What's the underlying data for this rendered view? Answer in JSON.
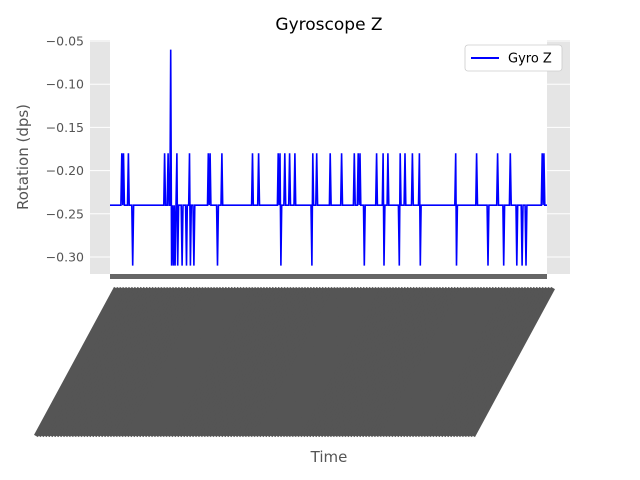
{
  "chart_data": {
    "type": "line",
    "title": "Gyroscope Z",
    "xlabel": "Time",
    "ylabel": "Rotation (dps)",
    "ylim": [
      -0.32,
      -0.045
    ],
    "yticks": [
      "-0.05",
      "-0.10",
      "-0.15",
      "-0.20",
      "-0.25",
      "-0.30"
    ],
    "ytick_values": [
      -0.05,
      -0.1,
      -0.15,
      -0.2,
      -0.25,
      -0.3
    ],
    "grid": true,
    "legend": {
      "placement": "top-right"
    },
    "x_ticks_illegible": true,
    "series": [
      {
        "name": "Gyro Z",
        "color": "#0000ff",
        "points": [
          [
            0.0,
            -0.24
          ],
          [
            2.5,
            -0.24
          ],
          [
            2.7,
            -0.18
          ],
          [
            2.9,
            -0.24
          ],
          [
            3.1,
            -0.18
          ],
          [
            3.3,
            -0.24
          ],
          [
            4.0,
            -0.24
          ],
          [
            4.2,
            -0.18
          ],
          [
            4.4,
            -0.24
          ],
          [
            5.0,
            -0.24
          ],
          [
            5.2,
            -0.31
          ],
          [
            5.4,
            -0.24
          ],
          [
            12.3,
            -0.24
          ],
          [
            12.5,
            -0.18
          ],
          [
            12.7,
            -0.24
          ],
          [
            13.1,
            -0.24
          ],
          [
            13.3,
            -0.18
          ],
          [
            13.5,
            -0.24
          ],
          [
            13.7,
            -0.24
          ],
          [
            13.9,
            -0.06
          ],
          [
            14.1,
            -0.31
          ],
          [
            14.3,
            -0.24
          ],
          [
            14.5,
            -0.31
          ],
          [
            14.7,
            -0.24
          ],
          [
            14.9,
            -0.31
          ],
          [
            15.1,
            -0.24
          ],
          [
            15.3,
            -0.18
          ],
          [
            15.5,
            -0.31
          ],
          [
            15.7,
            -0.24
          ],
          [
            16.3,
            -0.24
          ],
          [
            16.5,
            -0.31
          ],
          [
            16.7,
            -0.24
          ],
          [
            17.3,
            -0.24
          ],
          [
            17.5,
            -0.31
          ],
          [
            17.7,
            -0.24
          ],
          [
            18.0,
            -0.24
          ],
          [
            18.2,
            -0.18
          ],
          [
            18.4,
            -0.31
          ],
          [
            18.6,
            -0.24
          ],
          [
            19.0,
            -0.24
          ],
          [
            19.2,
            -0.31
          ],
          [
            19.4,
            -0.24
          ],
          [
            22.3,
            -0.24
          ],
          [
            22.5,
            -0.18
          ],
          [
            22.7,
            -0.24
          ],
          [
            22.9,
            -0.18
          ],
          [
            23.1,
            -0.24
          ],
          [
            24.4,
            -0.24
          ],
          [
            24.6,
            -0.31
          ],
          [
            24.8,
            -0.24
          ],
          [
            25.4,
            -0.24
          ],
          [
            25.6,
            -0.18
          ],
          [
            25.8,
            -0.24
          ],
          [
            32.4,
            -0.24
          ],
          [
            32.6,
            -0.18
          ],
          [
            32.8,
            -0.24
          ],
          [
            33.8,
            -0.24
          ],
          [
            34.0,
            -0.18
          ],
          [
            34.2,
            -0.24
          ],
          [
            38.3,
            -0.24
          ],
          [
            38.5,
            -0.18
          ],
          [
            38.7,
            -0.24
          ],
          [
            38.9,
            -0.18
          ],
          [
            39.1,
            -0.31
          ],
          [
            39.3,
            -0.24
          ],
          [
            39.8,
            -0.24
          ],
          [
            40.0,
            -0.18
          ],
          [
            40.2,
            -0.24
          ],
          [
            40.9,
            -0.24
          ],
          [
            41.1,
            -0.18
          ],
          [
            41.3,
            -0.24
          ],
          [
            42.1,
            -0.24
          ],
          [
            42.3,
            -0.18
          ],
          [
            42.5,
            -0.24
          ],
          [
            46.0,
            -0.24
          ],
          [
            46.2,
            -0.31
          ],
          [
            46.4,
            -0.18
          ],
          [
            46.6,
            -0.24
          ],
          [
            47.1,
            -0.24
          ],
          [
            47.3,
            -0.18
          ],
          [
            47.5,
            -0.24
          ],
          [
            50.2,
            -0.24
          ],
          [
            50.4,
            -0.18
          ],
          [
            50.6,
            -0.24
          ],
          [
            52.8,
            -0.24
          ],
          [
            53.0,
            -0.18
          ],
          [
            53.2,
            -0.24
          ],
          [
            55.7,
            -0.24
          ],
          [
            55.9,
            -0.18
          ],
          [
            56.1,
            -0.24
          ],
          [
            56.6,
            -0.24
          ],
          [
            56.8,
            -0.18
          ],
          [
            57.0,
            -0.24
          ],
          [
            57.2,
            -0.18
          ],
          [
            57.4,
            -0.24
          ],
          [
            58.0,
            -0.24
          ],
          [
            58.2,
            -0.31
          ],
          [
            58.4,
            -0.24
          ],
          [
            60.8,
            -0.24
          ],
          [
            61.0,
            -0.18
          ],
          [
            61.2,
            -0.24
          ],
          [
            62.3,
            -0.24
          ],
          [
            62.5,
            -0.18
          ],
          [
            62.7,
            -0.31
          ],
          [
            62.9,
            -0.24
          ],
          [
            63.4,
            -0.24
          ],
          [
            63.6,
            -0.18
          ],
          [
            63.8,
            -0.24
          ],
          [
            66.0,
            -0.24
          ],
          [
            66.2,
            -0.31
          ],
          [
            66.4,
            -0.18
          ],
          [
            66.6,
            -0.24
          ],
          [
            67.3,
            -0.24
          ],
          [
            67.5,
            -0.18
          ],
          [
            67.7,
            -0.24
          ],
          [
            69.0,
            -0.24
          ],
          [
            69.2,
            -0.18
          ],
          [
            69.4,
            -0.24
          ],
          [
            70.6,
            -0.24
          ],
          [
            70.8,
            -0.18
          ],
          [
            71.0,
            -0.31
          ],
          [
            71.2,
            -0.24
          ],
          [
            78.9,
            -0.24
          ],
          [
            79.1,
            -0.18
          ],
          [
            79.3,
            -0.31
          ],
          [
            79.5,
            -0.24
          ],
          [
            83.7,
            -0.24
          ],
          [
            83.9,
            -0.18
          ],
          [
            84.1,
            -0.24
          ],
          [
            86.3,
            -0.24
          ],
          [
            86.5,
            -0.31
          ],
          [
            86.7,
            -0.24
          ],
          [
            88.5,
            -0.24
          ],
          [
            88.7,
            -0.18
          ],
          [
            88.9,
            -0.24
          ],
          [
            89.9,
            -0.24
          ],
          [
            90.1,
            -0.31
          ],
          [
            90.3,
            -0.24
          ],
          [
            91.4,
            -0.24
          ],
          [
            91.6,
            -0.18
          ],
          [
            91.8,
            -0.24
          ],
          [
            92.9,
            -0.24
          ],
          [
            93.1,
            -0.31
          ],
          [
            93.3,
            -0.24
          ],
          [
            94.1,
            -0.24
          ],
          [
            94.3,
            -0.31
          ],
          [
            94.5,
            -0.24
          ],
          [
            95.0,
            -0.24
          ],
          [
            95.2,
            -0.31
          ],
          [
            95.4,
            -0.24
          ],
          [
            98.7,
            -0.24
          ],
          [
            98.9,
            -0.18
          ],
          [
            99.1,
            -0.24
          ],
          [
            99.3,
            -0.18
          ],
          [
            99.5,
            -0.24
          ],
          [
            100.0,
            -0.24
          ]
        ]
      }
    ]
  }
}
